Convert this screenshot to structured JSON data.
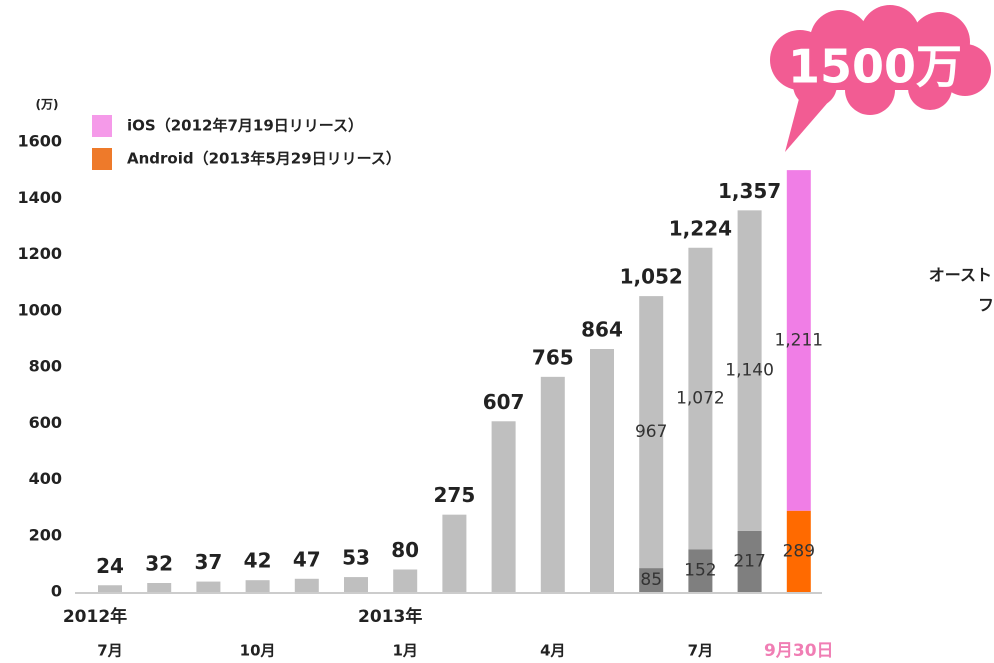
{
  "chart_data": {
    "type": "stacked-bar",
    "y_unit": "(万)",
    "categories": [
      "7月",
      null,
      null,
      "10月",
      null,
      null,
      "1月",
      null,
      null,
      "4月",
      null,
      null,
      "7月",
      null,
      "9月30日"
    ],
    "year_labels": [
      "2012年",
      "2013年"
    ],
    "series": [
      {
        "name": "Android（2013年5月29日リリース）",
        "color": "#ee7a2a",
        "point_colors": [
          "#7f7f7f",
          "#7f7f7f",
          "#7f7f7f",
          "#7f7f7f",
          "#7f7f7f",
          "#7f7f7f",
          "#7f7f7f",
          "#7f7f7f",
          "#7f7f7f",
          "#7f7f7f",
          "#7f7f7f",
          "#7f7f7f",
          "#7f7f7f",
          "#7f7f7f",
          "#ff6a00"
        ],
        "values": [
          null,
          null,
          null,
          null,
          null,
          null,
          null,
          null,
          null,
          null,
          null,
          85,
          152,
          217,
          289
        ]
      },
      {
        "name": "iOS（2012年7月19日リリース）",
        "color": "#f59ae9",
        "point_colors": [
          "#bfbfbf",
          "#bfbfbf",
          "#bfbfbf",
          "#bfbfbf",
          "#bfbfbf",
          "#bfbfbf",
          "#bfbfbf",
          "#bfbfbf",
          "#bfbfbf",
          "#bfbfbf",
          "#bfbfbf",
          "#bfbfbf",
          "#bfbfbf",
          "#bfbfbf",
          "#f07ee6"
        ],
        "values": [
          24,
          32,
          37,
          42,
          47,
          53,
          80,
          275,
          607,
          765,
          864,
          967,
          1072,
          1140,
          1211
        ],
        "value_labels": [
          null,
          null,
          null,
          null,
          null,
          null,
          null,
          null,
          null,
          null,
          null,
          "967",
          "1,072",
          "1,140",
          "1,211"
        ]
      }
    ],
    "totals": [
      24,
      32,
      37,
      42,
      47,
      53,
      80,
      275,
      607,
      765,
      864,
      1052,
      1224,
      1357,
      null
    ],
    "total_labels": [
      "24",
      "32",
      "37",
      "42",
      "47",
      "53",
      "80",
      "275",
      "607",
      "765",
      "864",
      "1,052",
      "1,224",
      "1,357",
      null
    ],
    "ylim": [
      0,
      1600
    ],
    "yticks": [
      0,
      200,
      400,
      600,
      800,
      1000,
      1200,
      1400,
      1600
    ],
    "callout": "1500万",
    "side_text": [
      "オースト",
      "フ"
    ]
  }
}
